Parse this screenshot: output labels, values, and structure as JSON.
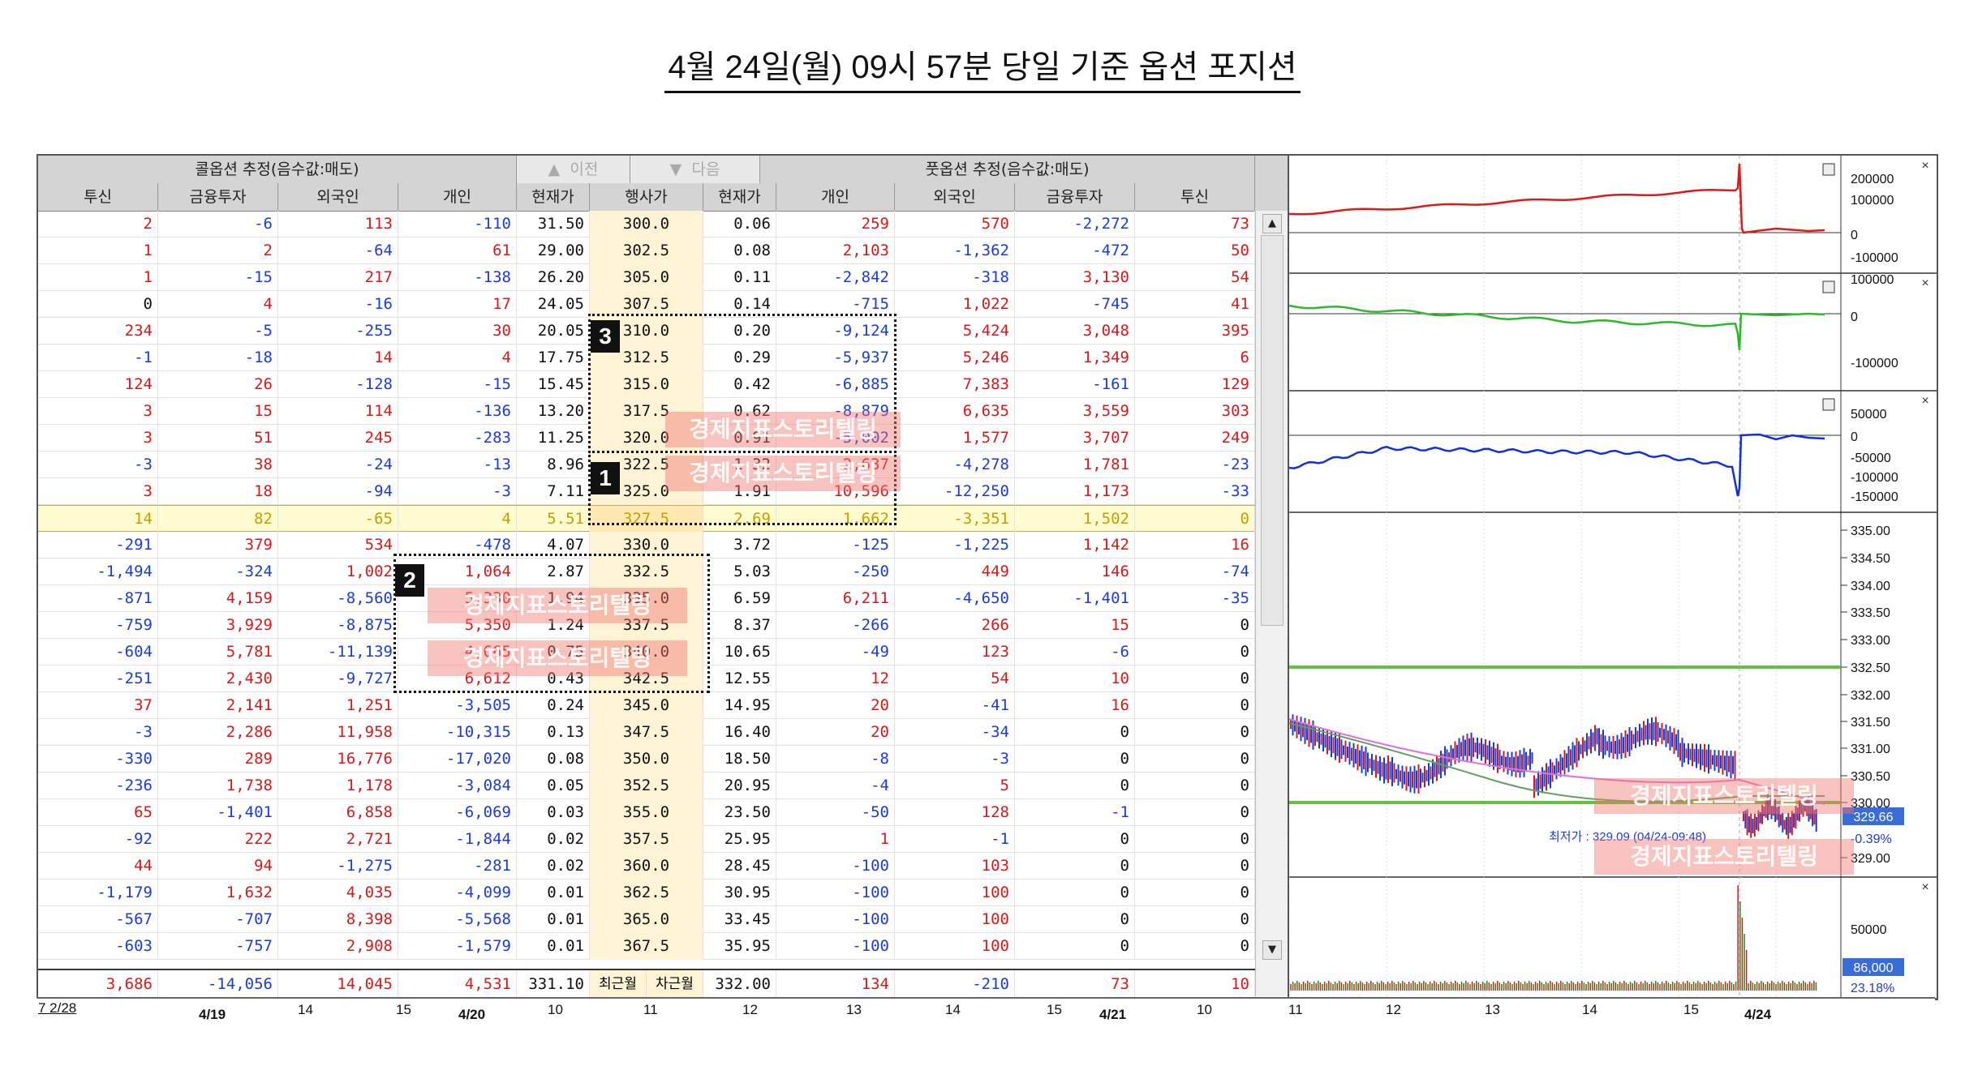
{
  "title": "4월 24일(월) 09시 57분 당일 기준 옵션 포지션",
  "header": {
    "call_group": "콜옵션 추정(음수값:매도)",
    "prev_label": "이전",
    "next_label": "다음",
    "put_group": "풋옵션 추정(음수값:매도)",
    "columns": [
      "투신",
      "금융투자",
      "외국인",
      "개인",
      "현재가",
      "행사가",
      "현재가",
      "개인",
      "외국인",
      "금융투자",
      "투신"
    ]
  },
  "rows": [
    [
      "2",
      "-6",
      "113",
      "-110",
      "31.50",
      "300.0",
      "0.06",
      "259",
      "570",
      "-2,272",
      "73"
    ],
    [
      "1",
      "2",
      "-64",
      "61",
      "29.00",
      "302.5",
      "0.08",
      "2,103",
      "-1,362",
      "-472",
      "50"
    ],
    [
      "1",
      "-15",
      "217",
      "-138",
      "26.20",
      "305.0",
      "0.11",
      "-2,842",
      "-318",
      "3,130",
      "54"
    ],
    [
      "0",
      "4",
      "-16",
      "17",
      "24.05",
      "307.5",
      "0.14",
      "-715",
      "1,022",
      "-745",
      "41"
    ],
    [
      "234",
      "-5",
      "-255",
      "30",
      "20.05",
      "310.0",
      "0.20",
      "-9,124",
      "5,424",
      "3,048",
      "395"
    ],
    [
      "-1",
      "-18",
      "14",
      "4",
      "17.75",
      "312.5",
      "0.29",
      "-5,937",
      "5,246",
      "1,349",
      "6"
    ],
    [
      "124",
      "26",
      "-128",
      "-15",
      "15.45",
      "315.0",
      "0.42",
      "-6,885",
      "7,383",
      "-161",
      "129"
    ],
    [
      "3",
      "15",
      "114",
      "-136",
      "13.20",
      "317.5",
      "0.62",
      "-8,879",
      "6,635",
      "3,559",
      "303"
    ],
    [
      "3",
      "51",
      "245",
      "-283",
      "11.25",
      "320.0",
      "0.91",
      "-5,002",
      "1,577",
      "3,707",
      "249"
    ],
    [
      "-3",
      "38",
      "-24",
      "-13",
      "8.96",
      "322.5",
      "1.32",
      "2,637",
      "-4,278",
      "1,781",
      "-23"
    ],
    [
      "3",
      "18",
      "-94",
      "-3",
      "7.11",
      "325.0",
      "1.91",
      "10,596",
      "-12,250",
      "1,173",
      "-33"
    ],
    [
      "14",
      "82",
      "-65",
      "4",
      "5.51",
      "327.5",
      "2.69",
      "1,662",
      "-3,351",
      "1,502",
      "0"
    ],
    [
      "-291",
      "379",
      "534",
      "-478",
      "4.07",
      "330.0",
      "3.72",
      "-125",
      "-1,225",
      "1,142",
      "16"
    ],
    [
      "-1,494",
      "-324",
      "1,002",
      "1,064",
      "2.87",
      "332.5",
      "5.03",
      "-250",
      "449",
      "146",
      "-74"
    ],
    [
      "-871",
      "4,159",
      "-8,560",
      "5,330",
      "1.94",
      "335.0",
      "6.59",
      "6,211",
      "-4,650",
      "-1,401",
      "-35"
    ],
    [
      "-759",
      "3,929",
      "-8,875",
      "5,350",
      "1.24",
      "337.5",
      "8.37",
      "-266",
      "266",
      "15",
      "0"
    ],
    [
      "-604",
      "5,781",
      "-11,139",
      "4,665",
      "0.75",
      "340.0",
      "10.65",
      "-49",
      "123",
      "-6",
      "0"
    ],
    [
      "-251",
      "2,430",
      "-9,727",
      "6,612",
      "0.43",
      "342.5",
      "12.55",
      "12",
      "54",
      "10",
      "0"
    ],
    [
      "37",
      "2,141",
      "1,251",
      "-3,505",
      "0.24",
      "345.0",
      "14.95",
      "20",
      "-41",
      "16",
      "0"
    ],
    [
      "-3",
      "2,286",
      "11,958",
      "-10,315",
      "0.13",
      "347.5",
      "16.40",
      "20",
      "-34",
      "0",
      "0"
    ],
    [
      "-330",
      "289",
      "16,776",
      "-17,020",
      "0.08",
      "350.0",
      "18.50",
      "-8",
      "-3",
      "0",
      "0"
    ],
    [
      "-236",
      "1,738",
      "1,178",
      "-3,084",
      "0.05",
      "352.5",
      "20.95",
      "-4",
      "5",
      "0",
      "0"
    ],
    [
      "65",
      "-1,401",
      "6,858",
      "-6,069",
      "0.03",
      "355.0",
      "23.50",
      "-50",
      "128",
      "-1",
      "0"
    ],
    [
      "-92",
      "222",
      "2,721",
      "-1,844",
      "0.02",
      "357.5",
      "25.95",
      "1",
      "-1",
      "0",
      "0"
    ],
    [
      "44",
      "94",
      "-1,275",
      "-281",
      "0.02",
      "360.0",
      "28.45",
      "-100",
      "103",
      "0",
      "0"
    ],
    [
      "-1,179",
      "1,632",
      "4,035",
      "-4,099",
      "0.01",
      "362.5",
      "30.95",
      "-100",
      "100",
      "0",
      "0"
    ],
    [
      "-567",
      "-707",
      "8,398",
      "-5,568",
      "0.01",
      "365.0",
      "33.45",
      "-100",
      "100",
      "0",
      "0"
    ],
    [
      "-603",
      "-757",
      "2,908",
      "-1,579",
      "0.01",
      "367.5",
      "35.95",
      "-100",
      "100",
      "0",
      "0"
    ]
  ],
  "highlight_strike": "327.5",
  "summary": [
    "3,686",
    "-14,056",
    "14,045",
    "4,531",
    "331.10",
    "최근월",
    "차근월",
    "332.00",
    "134",
    "-210",
    "73",
    "10"
  ],
  "xaxis": {
    "corner": "7 2/28",
    "ticks": [
      "4/19",
      "14",
      "15",
      "4/20",
      "10",
      "11",
      "12",
      "13",
      "14",
      "15",
      "4/21",
      "10",
      "11",
      "12",
      "13",
      "14",
      "15",
      "4/24"
    ]
  },
  "chart": {
    "pane1_axis": [
      "200000",
      "100000",
      "0",
      "-100000"
    ],
    "pane2_axis": [
      "100000",
      "0",
      "-100000"
    ],
    "pane3_axis": [
      "50000",
      "0",
      "-50000",
      "-100000",
      "-150000"
    ],
    "price_axis": [
      "335.00",
      "334.50",
      "334.00",
      "333.50",
      "333.00",
      "332.50",
      "332.00",
      "331.50",
      "331.00",
      "330.50",
      "330.00",
      "329.00"
    ],
    "current_price": "329.66",
    "change_pct": "-0.39%",
    "low_label": "최저가 : 329.09 (04/24-09:48)",
    "volume_axis": "50000",
    "volume_value": "86,000",
    "volume_pct": "23.18%"
  },
  "annotations": {
    "box1": "1",
    "box2": "2",
    "box3": "3",
    "watermark": "경제지표스토리텔링"
  },
  "colors": {
    "call_red": "#d81818",
    "put_blue": "#1a3bd9",
    "line1": "#e01818",
    "line2": "#2eb82e",
    "line3": "#1030e0",
    "support_green": "#66c040"
  }
}
